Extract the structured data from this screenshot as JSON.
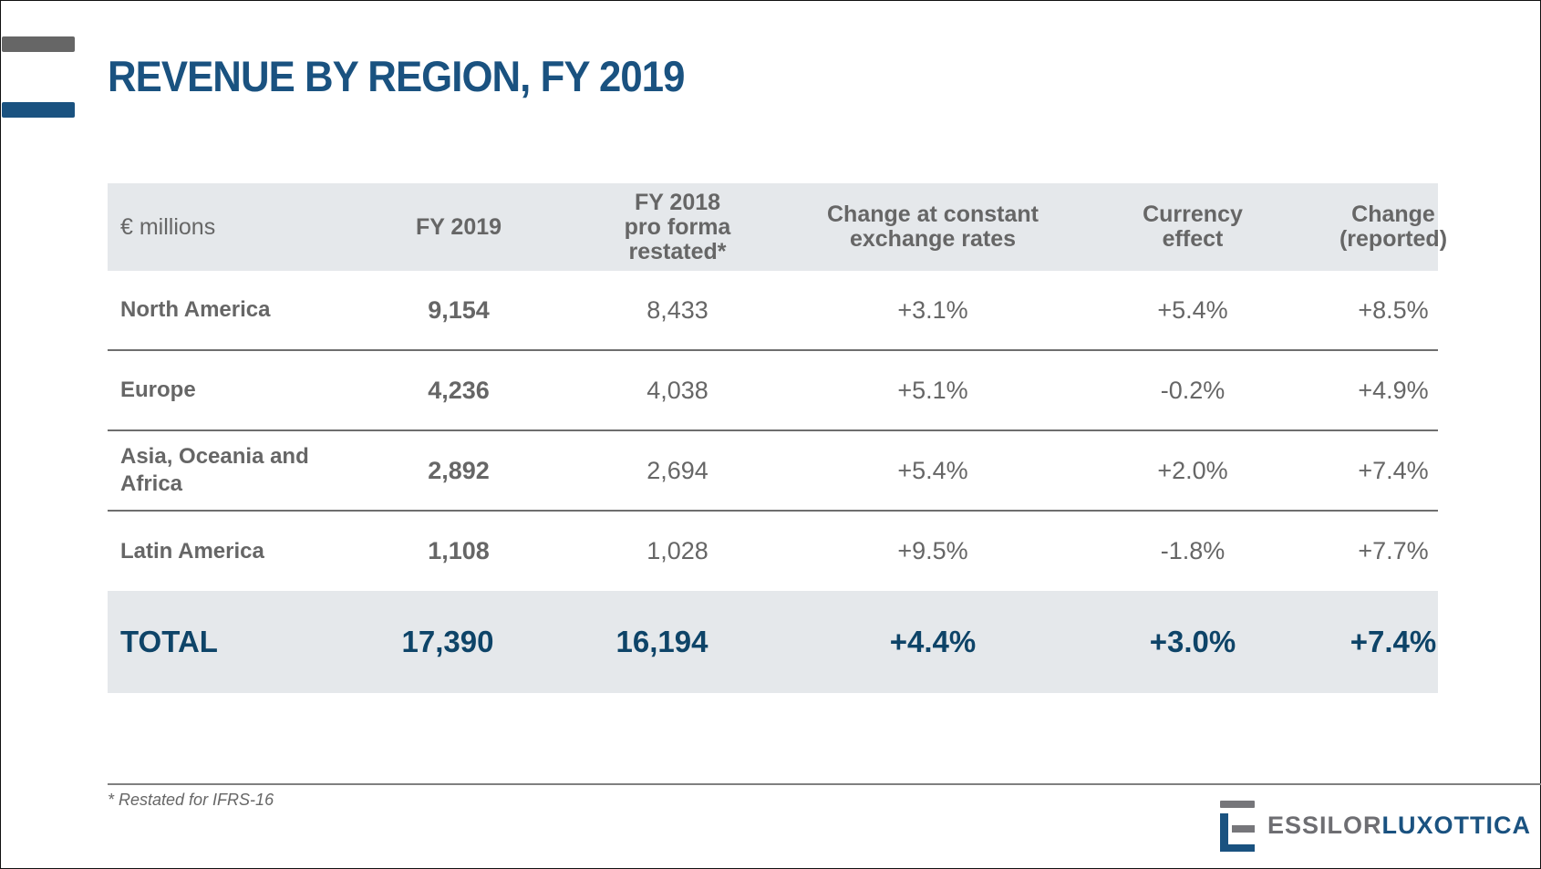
{
  "slide": {
    "title": "REVENUE BY REGION, FY 2019",
    "footnote": "* Restated for IFRS-16"
  },
  "table": {
    "headers": [
      "€ millions",
      "FY 2019",
      "FY 2018\npro forma\nrestated*",
      "Change at constant\nexchange rates",
      "Currency\neffect",
      "Change\n(reported)"
    ],
    "rows": [
      {
        "region": "North America",
        "fy2019": "9,154",
        "fy2018": "8,433",
        "constant": "+3.1%",
        "currency": "+5.4%",
        "reported": "+8.5%"
      },
      {
        "region": "Europe",
        "fy2019": "4,236",
        "fy2018": "4,038",
        "constant": "+5.1%",
        "currency": "-0.2%",
        "reported": "+4.9%"
      },
      {
        "region": "Asia, Oceania and Africa",
        "fy2019": "2,892",
        "fy2018": "2,694",
        "constant": "+5.4%",
        "currency": "+2.0%",
        "reported": "+7.4%"
      },
      {
        "region": "Latin America",
        "fy2019": "1,108",
        "fy2018": "1,028",
        "constant": "+9.5%",
        "currency": "-1.8%",
        "reported": "+7.7%"
      }
    ],
    "total": {
      "region": "TOTAL",
      "fy2019": "17,390",
      "fy2018": "16,194",
      "constant": "+4.4%",
      "currency": "+3.0%",
      "reported": "+7.4%"
    }
  },
  "logo": {
    "part1": "ESSILOR",
    "part2": "LUXOTTICA"
  },
  "colors": {
    "brand_blue": "#1a5280",
    "total_blue": "#0e4468",
    "grey": "#666666",
    "band": "#e5e8eb"
  }
}
